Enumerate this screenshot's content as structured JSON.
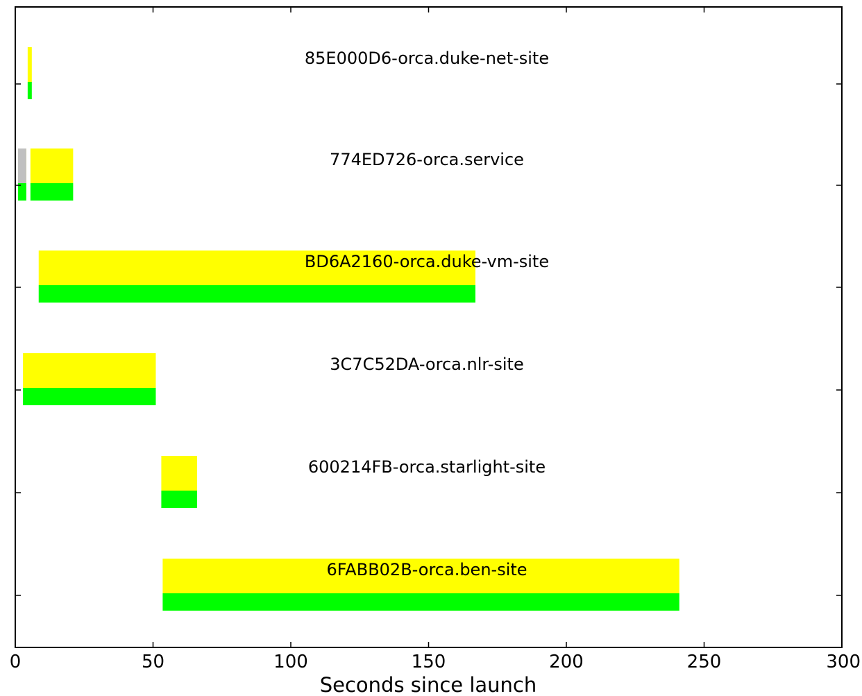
{
  "chart_data": {
    "type": "bar",
    "orientation": "horizontal-gantt",
    "title": "",
    "xlabel": "Seconds since launch",
    "ylabel": "",
    "xlim": [
      0,
      300
    ],
    "xticks": [
      0,
      50,
      100,
      150,
      200,
      250,
      300
    ],
    "xtick_labels": [
      "0",
      "50",
      "100",
      "150",
      "200",
      "250",
      "300"
    ],
    "grid": false,
    "legend": "none",
    "colors": {
      "upper": "#ffff00",
      "lower": "#00ff00",
      "pending": "#c0c0c0"
    },
    "rows": [
      {
        "label": "85E000D6-orca.duke-net-site",
        "upper": [
          {
            "start": 4.5,
            "end": 6.0
          }
        ],
        "lower": [
          {
            "start": 4.5,
            "end": 6.0
          }
        ],
        "pending": []
      },
      {
        "label": "774ED726-orca.service",
        "upper": [
          {
            "start": 1.0,
            "end": 4.0
          },
          {
            "start": 5.5,
            "end": 21.0
          }
        ],
        "lower": [
          {
            "start": 1.0,
            "end": 4.0
          },
          {
            "start": 5.5,
            "end": 21.0
          }
        ],
        "pending": [
          {
            "start": 1.0,
            "end": 4.0
          }
        ]
      },
      {
        "label": "BD6A2160-orca.duke-vm-site",
        "upper": [
          {
            "start": 8.5,
            "end": 167.0
          }
        ],
        "lower": [
          {
            "start": 8.5,
            "end": 167.0
          }
        ],
        "pending": []
      },
      {
        "label": "3C7C52DA-orca.nlr-site",
        "upper": [
          {
            "start": 2.8,
            "end": 51.0
          }
        ],
        "lower": [
          {
            "start": 2.8,
            "end": 51.0
          }
        ],
        "pending": []
      },
      {
        "label": "600214FB-orca.starlight-site",
        "upper": [
          {
            "start": 53.0,
            "end": 66.0
          }
        ],
        "lower": [
          {
            "start": 53.0,
            "end": 66.0
          }
        ],
        "pending": []
      },
      {
        "label": "6FABB02B-orca.ben-site",
        "upper": [
          {
            "start": 53.5,
            "end": 241.0
          }
        ],
        "lower": [
          {
            "start": 53.5,
            "end": 241.0
          }
        ],
        "pending": []
      }
    ]
  }
}
